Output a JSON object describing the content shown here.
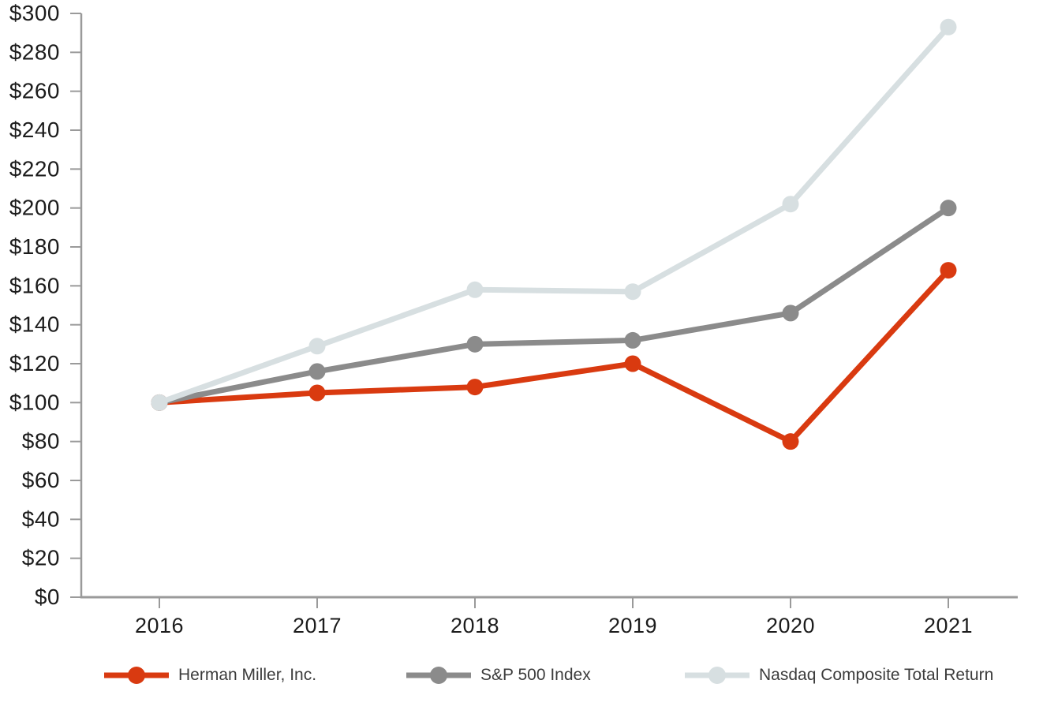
{
  "chart_data": {
    "type": "line",
    "title": "",
    "categories": [
      "2016",
      "2017",
      "2018",
      "2019",
      "2020",
      "2021"
    ],
    "xlabel": "",
    "ylabel": "",
    "y_prefix": "$",
    "ylim": [
      0,
      300
    ],
    "ytick_step": 20,
    "ytick_values": [
      0,
      20,
      40,
      60,
      80,
      100,
      120,
      140,
      160,
      180,
      200,
      220,
      240,
      260,
      280,
      300
    ],
    "ytick_labels": [
      "$0",
      "$20",
      "$40",
      "$60",
      "$80",
      "$100",
      "$120",
      "$140",
      "$160",
      "$180",
      "$200",
      "$220",
      "$240",
      "$260",
      "$280",
      "$300"
    ],
    "grid": false,
    "legend_position": "bottom",
    "axis_color": "#9a9a9a",
    "tick_text_color": "#1c1c1c",
    "legend_text_color": "#3c3c3c",
    "series": [
      {
        "name": "Herman Miller, Inc.",
        "color": "#d93a10",
        "values": [
          100,
          105,
          108,
          120,
          80,
          168
        ]
      },
      {
        "name": "S&P 500 Index",
        "color": "#8b8b8b",
        "values": [
          100,
          116,
          130,
          132,
          146,
          200
        ]
      },
      {
        "name": "Nasdaq Composite Total Return",
        "color": "#d7dfe1",
        "values": [
          100,
          129,
          158,
          157,
          202,
          293
        ]
      }
    ]
  }
}
